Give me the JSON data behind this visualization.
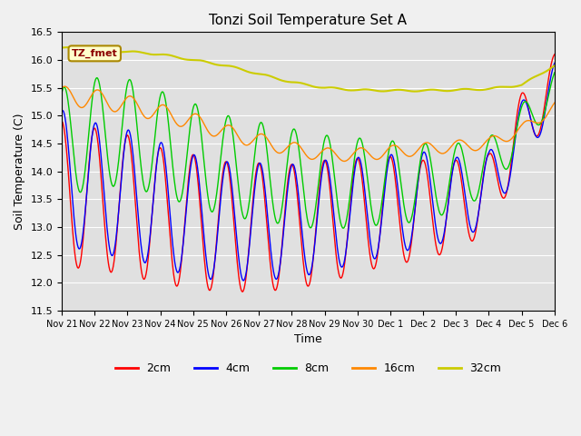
{
  "title": "Tonzi Soil Temperature Set A",
  "xlabel": "Time",
  "ylabel": "Soil Temperature (C)",
  "ylim": [
    11.5,
    16.5
  ],
  "colors": {
    "2cm": "#ff0000",
    "4cm": "#0000ff",
    "8cm": "#00cc00",
    "16cm": "#ff8800",
    "32cm": "#cccc00"
  },
  "legend_label": "TZ_fmet",
  "xtick_labels": [
    "Nov 21",
    "Nov 22",
    "Nov 23",
    "Nov 24",
    "Nov 25",
    "Nov 26",
    "Nov 27",
    "Nov 28",
    "Nov 29",
    "Nov 30",
    "Dec 1",
    "Dec 2",
    "Dec 3",
    "Dec 4",
    "Dec 5",
    "Dec 6"
  ],
  "yticks": [
    11.5,
    12.0,
    12.5,
    13.0,
    13.5,
    14.0,
    14.5,
    15.0,
    15.5,
    16.0,
    16.5
  ],
  "n_points": 720,
  "figsize": [
    6.4,
    4.8
  ],
  "dpi": 100
}
